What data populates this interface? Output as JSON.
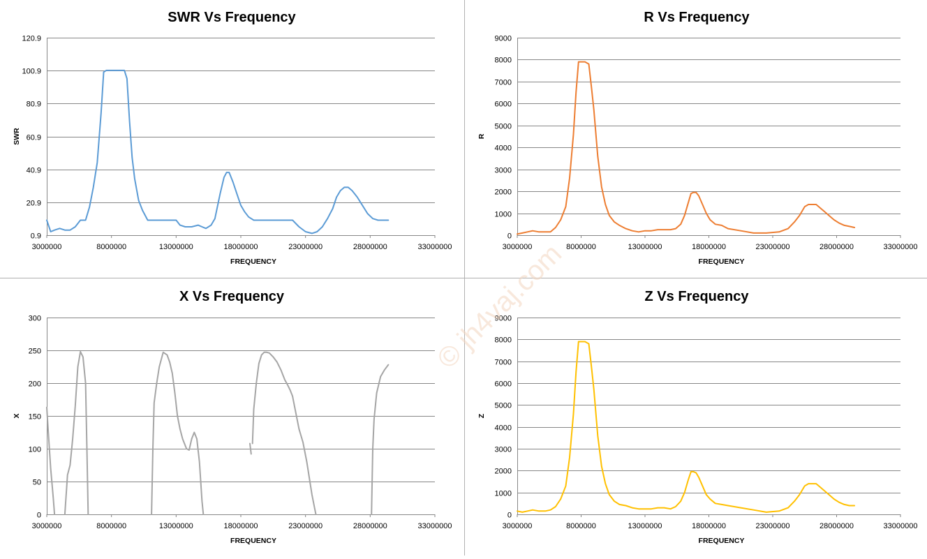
{
  "watermark": "© jh4vaj.com",
  "chart_data": [
    {
      "id": "swr",
      "type": "line",
      "title": "SWR Vs Frequency",
      "xlabel": "FREQUENCY",
      "ylabel": "SWR",
      "color": "#5b9bd5",
      "xlim": [
        3000000,
        33000000
      ],
      "ylim": [
        0.9,
        120.9
      ],
      "xticks": [
        3000000,
        8000000,
        13000000,
        18000000,
        23000000,
        28000000,
        33000000
      ],
      "yticks": [
        0.9,
        20.9,
        40.9,
        60.9,
        80.9,
        100.9,
        120.9
      ],
      "x_tick_labels": [
        "3000000",
        "8000000",
        "13000000",
        "18000000",
        "23000000",
        "28000000",
        "33000000"
      ],
      "y_tick_labels": [
        "0.9",
        "20.9",
        "40.9",
        "60.9",
        "80.9",
        "100.9",
        "120.9"
      ],
      "grid": true,
      "series": [
        {
          "x": [
            3000000,
            3300000,
            3600000,
            4000000,
            4400000,
            4800000,
            5200000,
            5600000,
            6000000,
            6300000,
            6600000,
            6900000,
            7200000,
            7400000,
            7600000,
            7800000,
            8000000,
            8500000,
            9000000,
            9200000,
            9400000,
            9600000,
            9800000,
            10100000,
            10400000,
            10800000,
            11500000,
            12300000,
            13000000,
            13300000,
            13700000,
            14200000,
            14700000,
            15000000,
            15300000,
            15700000,
            16000000,
            16400000,
            16700000,
            16900000,
            17100000,
            17400000,
            17700000,
            18000000,
            18300000,
            18600000,
            19000000,
            20000000,
            21000000,
            22000000,
            22500000,
            23000000,
            23500000,
            23900000,
            24300000,
            24700000,
            25100000,
            25400000,
            25700000,
            26000000,
            26300000,
            26600000,
            27000000,
            27400000,
            27800000,
            28200000,
            28600000,
            29000000,
            29400000
          ],
          "y": [
            10,
            3,
            4,
            5,
            4,
            4,
            6,
            10,
            10,
            18,
            30,
            45,
            75,
            100,
            101,
            101,
            101,
            101,
            101,
            96,
            70,
            48,
            35,
            22,
            16,
            10,
            10,
            10,
            10,
            7,
            6,
            6,
            7,
            6,
            5,
            7,
            11,
            26,
            36,
            39,
            39,
            33,
            26,
            19,
            15,
            12,
            10,
            10,
            10,
            10,
            6,
            3,
            2,
            3,
            6,
            11,
            17,
            24,
            28,
            30,
            30,
            28,
            24,
            19,
            14,
            11,
            10,
            10,
            10
          ]
        }
      ]
    },
    {
      "id": "r",
      "type": "line",
      "title": "R Vs Frequency",
      "xlabel": "FREQUENCY",
      "ylabel": "R",
      "color": "#ed7d31",
      "xlim": [
        3000000,
        33000000
      ],
      "ylim": [
        0,
        9000
      ],
      "xticks": [
        3000000,
        8000000,
        13000000,
        18000000,
        23000000,
        28000000,
        33000000
      ],
      "yticks": [
        0,
        1000,
        2000,
        3000,
        4000,
        5000,
        6000,
        7000,
        8000,
        9000
      ],
      "x_tick_labels": [
        "3000000",
        "8000000",
        "13000000",
        "18000000",
        "23000000",
        "28000000",
        "33000000"
      ],
      "y_tick_labels": [
        "0",
        "1000",
        "2000",
        "3000",
        "4000",
        "5000",
        "6000",
        "7000",
        "8000",
        "9000"
      ],
      "grid": true,
      "series": [
        {
          "x": [
            3000000,
            3400000,
            3800000,
            4200000,
            4700000,
            5200000,
            5600000,
            6000000,
            6400000,
            6800000,
            7100000,
            7400000,
            7600000,
            7800000,
            8000000,
            8300000,
            8600000,
            8800000,
            9000000,
            9300000,
            9600000,
            9900000,
            10200000,
            10600000,
            11000000,
            11500000,
            12000000,
            12500000,
            13000000,
            13500000,
            14000000,
            14500000,
            15000000,
            15400000,
            15800000,
            16100000,
            16400000,
            16600000,
            16800000,
            17000000,
            17200000,
            17500000,
            17800000,
            18100000,
            18500000,
            19000000,
            19500000,
            20500000,
            21500000,
            22500000,
            23500000,
            24200000,
            24700000,
            25100000,
            25500000,
            25800000,
            26100000,
            26400000,
            26700000,
            27000000,
            27400000,
            27800000,
            28200000,
            28600000,
            29000000,
            29400000
          ],
          "y": [
            50,
            100,
            150,
            200,
            150,
            150,
            150,
            350,
            700,
            1300,
            2600,
            4600,
            6500,
            7900,
            7900,
            7900,
            7800,
            6800,
            5700,
            3600,
            2200,
            1400,
            900,
            600,
            450,
            300,
            200,
            150,
            200,
            200,
            250,
            250,
            250,
            300,
            500,
            900,
            1500,
            1900,
            1950,
            1950,
            1800,
            1400,
            1000,
            700,
            500,
            450,
            300,
            200,
            100,
            100,
            150,
            300,
            600,
            900,
            1300,
            1400,
            1400,
            1400,
            1250,
            1100,
            900,
            700,
            550,
            450,
            400,
            350
          ]
        }
      ]
    },
    {
      "id": "x",
      "type": "line",
      "title": "X Vs Frequency",
      "xlabel": "FREQUENCY",
      "ylabel": "X",
      "color": "#a5a5a5",
      "xlim": [
        3000000,
        33000000
      ],
      "ylim": [
        0,
        300
      ],
      "xticks": [
        3000000,
        8000000,
        13000000,
        18000000,
        23000000,
        28000000,
        33000000
      ],
      "yticks": [
        0,
        50,
        100,
        150,
        200,
        250,
        300
      ],
      "x_tick_labels": [
        "3000000",
        "8000000",
        "13000000",
        "18000000",
        "23000000",
        "28000000",
        "33000000"
      ],
      "y_tick_labels": [
        "0",
        "50",
        "100",
        "150",
        "200",
        "250",
        "300"
      ],
      "grid": true,
      "series": [
        {
          "segments": [
            {
              "x": [
                3000000,
                3100000,
                3300000,
                3500000,
                3600000
              ],
              "y": [
                163,
                130,
                70,
                25,
                0
              ]
            },
            {
              "x": [
                4400000,
                4600000,
                4800000,
                5000000,
                5200000,
                5400000,
                5600000,
                5800000,
                6000000,
                6100000,
                6200000
              ],
              "y": [
                0,
                60,
                75,
                115,
                165,
                225,
                248,
                240,
                200,
                100,
                0
              ]
            },
            {
              "x": [
                11100000,
                11200000,
                11300000,
                11500000,
                11700000,
                12000000,
                12300000,
                12500000,
                12700000,
                12900000,
                13100000,
                13300000,
                13500000,
                13800000,
                14000000,
                14200000,
                14400000,
                14600000,
                14800000,
                15000000,
                15100000
              ],
              "y": [
                0,
                100,
                170,
                200,
                225,
                247,
                243,
                232,
                215,
                185,
                150,
                130,
                115,
                100,
                98,
                115,
                125,
                115,
                80,
                20,
                0
              ]
            },
            {
              "x": [
                18700000,
                18800000
              ],
              "y": [
                108,
                92
              ]
            },
            {
              "x": [
                18900000,
                19000000,
                19200000,
                19400000,
                19600000,
                19800000,
                20000000,
                20200000,
                20500000,
                20800000,
                21100000,
                21400000,
                21600000,
                21800000,
                22000000,
                22200000,
                22500000,
                22800000,
                23100000,
                23300000,
                23500000,
                23700000,
                23800000
              ],
              "y": [
                108,
                160,
                200,
                230,
                243,
                247,
                247,
                246,
                240,
                232,
                220,
                205,
                198,
                190,
                180,
                160,
                130,
                110,
                80,
                55,
                30,
                10,
                0
              ]
            },
            {
              "x": [
                28100000,
                28200000,
                28300000,
                28500000,
                28800000,
                29100000,
                29400000
              ],
              "y": [
                0,
                100,
                145,
                185,
                210,
                220,
                228
              ]
            }
          ]
        }
      ]
    },
    {
      "id": "z",
      "type": "line",
      "title": "Z Vs Frequency",
      "xlabel": "FREQUENCY",
      "ylabel": "Z",
      "color": "#ffc000",
      "xlim": [
        3000000,
        33000000
      ],
      "ylim": [
        0,
        9000
      ],
      "xticks": [
        3000000,
        8000000,
        13000000,
        18000000,
        23000000,
        28000000,
        33000000
      ],
      "yticks": [
        0,
        1000,
        2000,
        3000,
        4000,
        5000,
        6000,
        7000,
        8000,
        9000
      ],
      "x_tick_labels": [
        "3000000",
        "8000000",
        "13000000",
        "18000000",
        "23000000",
        "28000000",
        "33000000"
      ],
      "y_tick_labels": [
        "0",
        "1000",
        "2000",
        "3000",
        "4000",
        "5000",
        "6000",
        "7000",
        "8000",
        "9000"
      ],
      "grid": true,
      "series": [
        {
          "x": [
            3000000,
            3400000,
            3800000,
            4200000,
            4700000,
            5200000,
            5600000,
            6000000,
            6400000,
            6800000,
            7100000,
            7400000,
            7600000,
            7800000,
            8000000,
            8300000,
            8600000,
            8800000,
            9000000,
            9300000,
            9600000,
            9900000,
            10200000,
            10600000,
            11000000,
            11500000,
            12000000,
            12500000,
            13000000,
            13500000,
            14000000,
            14500000,
            15000000,
            15400000,
            15800000,
            16100000,
            16400000,
            16600000,
            16800000,
            17000000,
            17200000,
            17500000,
            17800000,
            18100000,
            18500000,
            19000000,
            19500000,
            20500000,
            21500000,
            22500000,
            23500000,
            24200000,
            24700000,
            25100000,
            25500000,
            25800000,
            26100000,
            26400000,
            26700000,
            27000000,
            27400000,
            27800000,
            28200000,
            28600000,
            29000000,
            29400000
          ],
          "y": [
            150,
            100,
            150,
            200,
            150,
            150,
            200,
            350,
            700,
            1300,
            2600,
            4600,
            6500,
            7900,
            7900,
            7900,
            7800,
            6800,
            5700,
            3600,
            2200,
            1400,
            900,
            600,
            450,
            400,
            300,
            250,
            250,
            250,
            300,
            300,
            250,
            350,
            600,
            1000,
            1600,
            1950,
            1950,
            1900,
            1700,
            1300,
            900,
            700,
            500,
            450,
            400,
            300,
            200,
            100,
            150,
            300,
            600,
            900,
            1300,
            1400,
            1400,
            1400,
            1250,
            1100,
            900,
            700,
            550,
            450,
            400,
            400
          ]
        }
      ]
    }
  ]
}
